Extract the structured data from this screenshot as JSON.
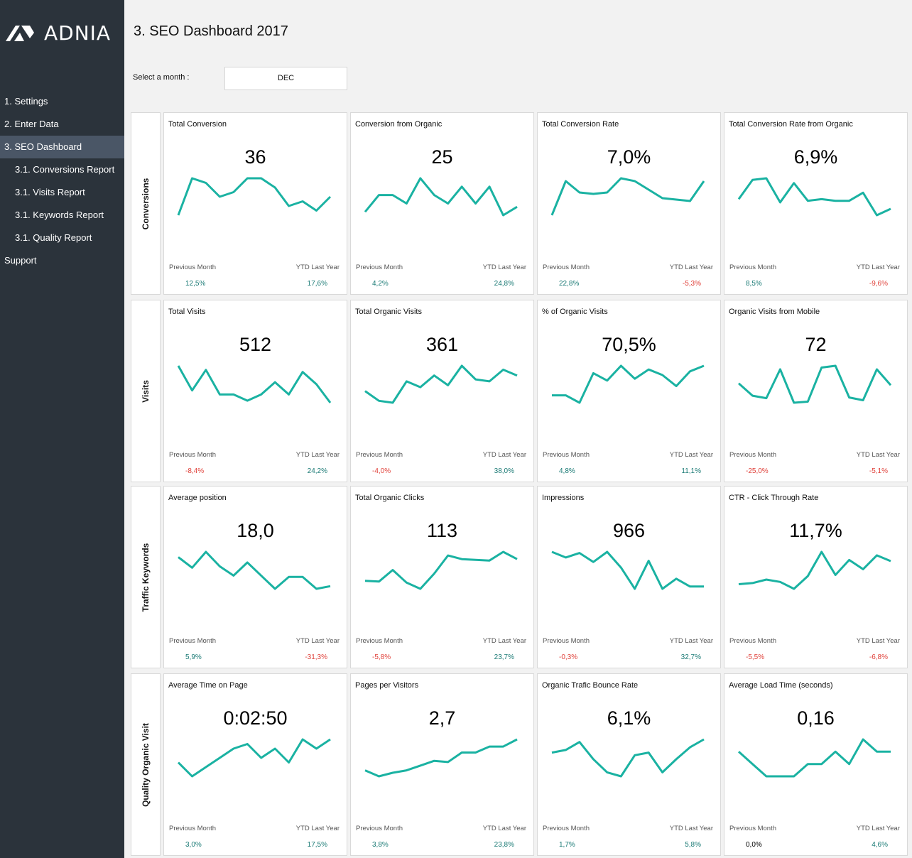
{
  "brand": {
    "name": "ADNIA"
  },
  "colors": {
    "sidebar": "#2b333b",
    "active": "#4a5666",
    "line": "#1ab2a2",
    "positive": "#1a7a75",
    "negative": "#e0413a"
  },
  "nav": {
    "items": [
      {
        "label": "1. Settings",
        "level": 0,
        "active": false
      },
      {
        "label": "2. Enter Data",
        "level": 0,
        "active": false
      },
      {
        "label": "3. SEO Dashboard",
        "level": 0,
        "active": true
      },
      {
        "label": "3.1. Conversions Report",
        "level": 1,
        "active": false
      },
      {
        "label": "3.1. Visits Report",
        "level": 1,
        "active": false
      },
      {
        "label": "3.1. Keywords Report",
        "level": 1,
        "active": false
      },
      {
        "label": "3.1. Quality Report",
        "level": 1,
        "active": false
      },
      {
        "label": "Support",
        "level": 0,
        "active": false
      }
    ]
  },
  "header": {
    "title": "3. SEO Dashboard 2017",
    "month_label": "Select a month :",
    "month_value": "DEC"
  },
  "labels": {
    "previous_month": "Previous Month",
    "ytd_last_year": "YTD Last  Year"
  },
  "rows": [
    {
      "label": "Conversions",
      "cards": [
        {
          "title": "Total Conversion",
          "value": "36",
          "prev": "12,5%",
          "prev_sign": "pos",
          "ytd": "17,6%",
          "ytd_sign": "pos",
          "series": [
            28,
            32,
            31.5,
            30,
            30.5,
            32,
            32,
            31,
            29,
            29.5,
            28.5,
            30
          ]
        },
        {
          "title": "Conversion from Organic",
          "value": "25",
          "prev": "4,2%",
          "prev_sign": "pos",
          "ytd": "24,8%",
          "ytd_sign": "pos",
          "series": [
            20,
            21,
            21,
            20.5,
            22,
            21,
            20.5,
            21.5,
            20.5,
            21.5,
            19.8,
            20.3
          ]
        },
        {
          "title": "Total Conversion Rate",
          "value": "7,0%",
          "prev": "22,8%",
          "prev_sign": "pos",
          "ytd": "-5,3%",
          "ytd_sign": "neg",
          "series": [
            5.0,
            6.2,
            5.8,
            5.75,
            5.8,
            6.3,
            6.2,
            5.9,
            5.6,
            5.55,
            5.5,
            6.2
          ]
        },
        {
          "title": "Total Conversion Rate from Organic",
          "value": "6,9%",
          "prev": "8,5%",
          "prev_sign": "pos",
          "ytd": "-9,6%",
          "ytd_sign": "neg",
          "series": [
            5.9,
            6.5,
            6.55,
            5.8,
            6.4,
            5.85,
            5.9,
            5.85,
            5.85,
            6.1,
            5.4,
            5.6
          ]
        }
      ]
    },
    {
      "label": "Visits",
      "cards": [
        {
          "title": "Total Visits",
          "value": "512",
          "prev": "-8,4%",
          "prev_sign": "neg",
          "ytd": "24,2%",
          "ytd_sign": "pos",
          "series": [
            520,
            508,
            518,
            506,
            506,
            503,
            506,
            512,
            506,
            517,
            511,
            502
          ]
        },
        {
          "title": "Total Organic Visits",
          "value": "361",
          "prev": "-4,0%",
          "prev_sign": "neg",
          "ytd": "38,0%",
          "ytd_sign": "pos",
          "series": [
            355,
            350,
            349,
            360,
            357,
            363,
            358,
            368,
            361,
            360,
            366,
            363
          ]
        },
        {
          "title": "% of Organic Visits",
          "value": "70,5%",
          "prev": "4,8%",
          "prev_sign": "pos",
          "ytd": "11,1%",
          "ytd_sign": "pos",
          "series": [
            64,
            64,
            62,
            70,
            68,
            72,
            68.5,
            71,
            69.5,
            66.5,
            70.5,
            72
          ]
        },
        {
          "title": "Organic Visits from Mobile",
          "value": "72",
          "prev": "-25,0%",
          "prev_sign": "neg",
          "ytd": "-5,1%",
          "ytd_sign": "neg",
          "series": [
            70,
            66.5,
            65.8,
            74,
            64.5,
            64.8,
            74.5,
            75,
            66,
            65.2,
            74,
            69.5
          ]
        }
      ]
    },
    {
      "label": "Traffic Keywords",
      "cards": [
        {
          "title": "Average position",
          "value": "18,0",
          "prev": "5,9%",
          "prev_sign": "pos",
          "ytd": "-31,3%",
          "ytd_sign": "neg",
          "series": [
            20,
            19.2,
            20.4,
            19.3,
            18.6,
            19.6,
            18.6,
            17.6,
            18.5,
            18.5,
            17.6,
            17.8
          ]
        },
        {
          "title": "Total Organic Clicks",
          "value": "113",
          "prev": "-5,8%",
          "prev_sign": "neg",
          "ytd": "23,7%",
          "ytd_sign": "pos",
          "series": [
            107,
            106.8,
            110,
            106.5,
            104.8,
            109,
            114,
            113,
            112.8,
            112.6,
            115,
            113
          ]
        },
        {
          "title": "Impressions",
          "value": "966",
          "prev": "-0,3%",
          "prev_sign": "neg",
          "ytd": "32,7%",
          "ytd_sign": "pos",
          "series": [
            990,
            985,
            989,
            981,
            990,
            976,
            957,
            982,
            957,
            966,
            959,
            959
          ]
        },
        {
          "title": "CTR - Click Through Rate",
          "value": "11,7%",
          "prev": "-5,5%",
          "prev_sign": "neg",
          "ytd": "-6,8%",
          "ytd_sign": "neg",
          "series": [
            9.5,
            9.6,
            9.9,
            9.7,
            9.1,
            10.2,
            12.3,
            10.3,
            11.6,
            10.8,
            12.0,
            11.5
          ]
        }
      ]
    },
    {
      "label": "Quality Organic Visit",
      "cards": [
        {
          "title": "Average Time on Page",
          "value": "0:02:50",
          "prev": "3,0%",
          "prev_sign": "pos",
          "ytd": "17,5%",
          "ytd_sign": "pos",
          "series": [
            160,
            157,
            159,
            161,
            163,
            164,
            161,
            163,
            160,
            165,
            163,
            165
          ]
        },
        {
          "title": "Pages per Visitors",
          "value": "2,7",
          "prev": "3,8%",
          "prev_sign": "pos",
          "ytd": "23,8%",
          "ytd_sign": "pos",
          "series": [
            2.4,
            2.35,
            2.38,
            2.4,
            2.44,
            2.48,
            2.47,
            2.55,
            2.55,
            2.6,
            2.6,
            2.66
          ]
        },
        {
          "title": "Organic Trafic Bounce Rate",
          "value": "6,1%",
          "prev": "1,7%",
          "prev_sign": "pos",
          "ytd": "5,8%",
          "ytd_sign": "pos",
          "series": [
            6.2,
            6.22,
            6.28,
            6.15,
            6.05,
            6.02,
            6.18,
            6.2,
            6.05,
            6.15,
            6.24,
            6.3
          ]
        },
        {
          "title": "Average Load Time (seconds)",
          "value": "0,16",
          "prev": "0,0%",
          "prev_sign": "",
          "ytd": "4,6%",
          "ytd_sign": "pos",
          "series": [
            0.16,
            0.154,
            0.148,
            0.148,
            0.148,
            0.154,
            0.154,
            0.16,
            0.154,
            0.166,
            0.16,
            0.16
          ]
        }
      ]
    }
  ]
}
